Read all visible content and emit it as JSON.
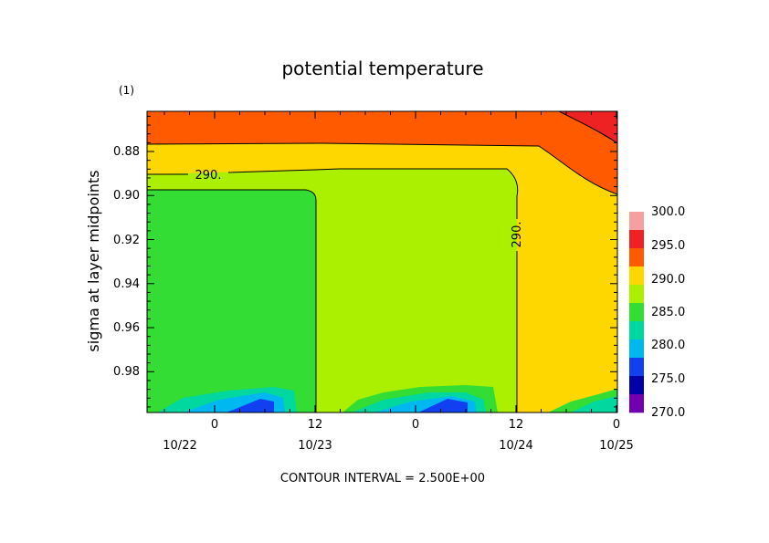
{
  "chart_data": {
    "type": "contour",
    "title": "potential temperature",
    "panel_label": "(1)",
    "ylabel": "sigma at layer midpoints",
    "footer": "CONTOUR INTERVAL = 2.500E+00",
    "x_ticks": [
      {
        "hour": "0",
        "date": "10/22"
      },
      {
        "hour": "12",
        "date": "10/23"
      },
      {
        "hour": "0",
        "date": ""
      },
      {
        "hour": "12",
        "date": "10/24"
      },
      {
        "hour": "0",
        "date": "10/25"
      }
    ],
    "y_ticks": [
      "0.88",
      "0.90",
      "0.92",
      "0.94",
      "0.96",
      "0.98"
    ],
    "ylim": [
      0.998,
      0.862
    ],
    "contour_labels": [
      "290.",
      "290."
    ],
    "colorbar": {
      "labels": [
        "300.0",
        "295.0",
        "290.0",
        "285.0",
        "280.0",
        "275.0",
        "270.0"
      ],
      "colors": [
        "#f4a0a0",
        "#ee2222",
        "#ff5a00",
        "#ffd700",
        "#aaf000",
        "#33dd33",
        "#00d8a0",
        "#00b8f0",
        "#1040f0",
        "#0000a8",
        "#7000b0"
      ]
    }
  }
}
